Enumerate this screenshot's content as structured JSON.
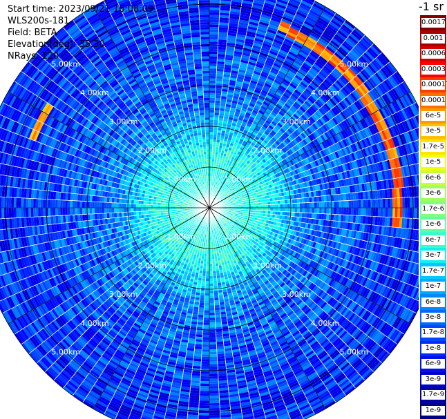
{
  "info": {
    "start_time": "Start time: 2023/09/21 16:08:09",
    "device": "WLS200s-181",
    "field": "Field: BETA",
    "elevation": "Elevation(deg): 35.30",
    "nrays": "NRays: 120"
  },
  "colorbar": {
    "unit": "-1 sr",
    "labels": [
      "0.0017",
      "0.001",
      "0.0006",
      "0.0003",
      "0.00017",
      "0.0001",
      "6e-5",
      "3e-5",
      "1.7e-5",
      "1e-5",
      "6e-6",
      "3e-6",
      "1.7e-6",
      "1e-6",
      "6e-7",
      "3e-7",
      "1.7e-7",
      "1e-7",
      "6e-8",
      "3e-8",
      "1.7e-8",
      "1e-8",
      "6e-9",
      "3e-9",
      "1.7e-9",
      "1e-9"
    ],
    "colors": [
      "#7f0000",
      "#a80000",
      "#d40000",
      "#ff0000",
      "#ff3c00",
      "#ff6e00",
      "#ff9900",
      "#ffc000",
      "#ffe500",
      "#f0ff10",
      "#c8ff38",
      "#a0ff60",
      "#80ff80",
      "#60ffa0",
      "#38ffc8",
      "#10f0f0",
      "#00c8ff",
      "#00a8ff",
      "#0088ff",
      "#0068ff",
      "#0048ff",
      "#0028ff",
      "#0010ee",
      "#0000c8",
      "#0000a0",
      "#000080"
    ]
  },
  "chart_data": {
    "type": "polar-heatmap",
    "field": "BETA",
    "nrays": 120,
    "range_rings_km": [
      1,
      2,
      3,
      4,
      5
    ],
    "ring_labels": [
      "1.00km",
      "2.00km",
      "3.00km",
      "4.00km",
      "5.00km"
    ],
    "max_range_km": 5.7,
    "radial_spoke_step_deg": 30,
    "description_values": {
      "near_field_level": "3e-7",
      "mid_field_level": "3e-8",
      "far_field_level": "1e-8",
      "arc_feature_level": "6e-5",
      "arc_feature_range_km": 4.7,
      "arc_feature_azimuth_deg": [
        20,
        95
      ]
    }
  }
}
